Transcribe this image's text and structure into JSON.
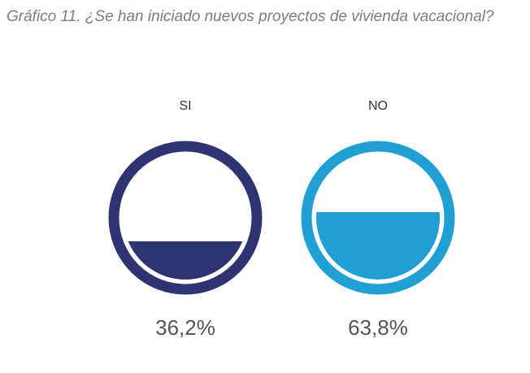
{
  "title": "Gráfico 11. ¿Se han iniciado nuevos proyectos de vivienda vacacional?",
  "chart_data": {
    "type": "gauge",
    "categories": [
      "SI",
      "NO"
    ],
    "values": [
      36.2,
      63.8
    ],
    "value_labels": [
      "36,2%",
      "63,8%"
    ],
    "colors": [
      "#2e3371",
      "#1f9fd3"
    ],
    "unit": "%"
  }
}
